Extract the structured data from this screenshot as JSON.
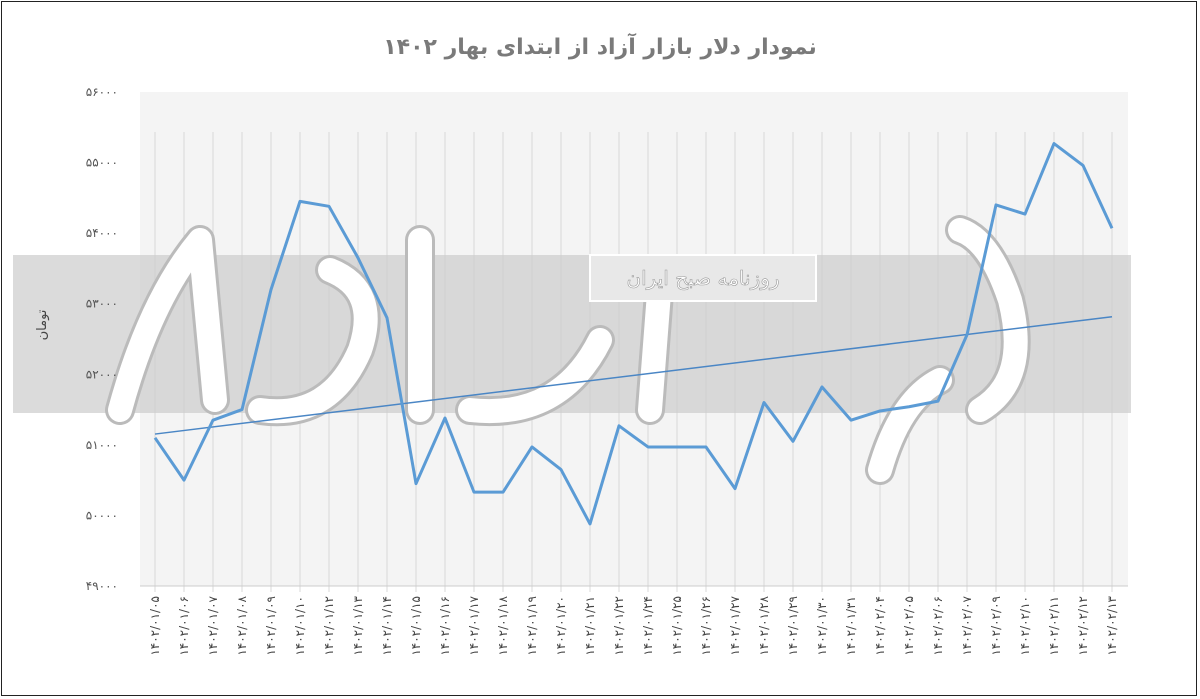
{
  "chart_data": {
    "type": "line",
    "title": "نمودار دلار بازار آزاد از ابتدای بهار ۱۴۰۲",
    "ylabel": "تومان",
    "xlabel": "",
    "ylim": [
      49000,
      56000
    ],
    "yticks": [
      49000,
      50000,
      51000,
      52000,
      53000,
      54000,
      55000,
      56000
    ],
    "ytick_labels": [
      "۴۹۰۰۰",
      "۵۰۰۰۰",
      "۵۱۰۰۰",
      "۵۲۰۰۰",
      "۵۳۰۰۰",
      "۵۴۰۰۰",
      "۵۵۰۰۰",
      "۵۶۰۰۰"
    ],
    "categories": [
      "۱۴۰۲/۰۱/۰۵",
      "۱۴۰۲/۰۱/۰۶",
      "۱۴۰۲/۰۱/۰۷",
      "۱۴۰۲/۰۱/۰۸",
      "۱۴۰۲/۰۱/۰۹",
      "۱۴۰۲/۰۱/۱۰",
      "۱۴۰۲/۰۱/۱۲",
      "۱۴۰۲/۰۱/۱۳",
      "۱۴۰۲/۰۱/۱۴",
      "۱۴۰۲/۰۱/۱۵",
      "۱۴۰۲/۰۱/۱۶",
      "۱۴۰۲/۰۱/۱۷",
      "۱۴۰۲/۰۱/۱۸",
      "۱۴۰۲/۰۱/۱۹",
      "۱۴۰۲/۰۱/۲۰",
      "۱۴۰۲/۰۱/۲۱",
      "۱۴۰۲/۰۱/۲۲",
      "۱۴۰۲/۰۱/۲۴",
      "۱۴۰۲/۰۱/۲۵",
      "۱۴۰۲/۰۱/۲۶",
      "۱۴۰۲/۰۱/۲۷",
      "۱۴۰۲/۰۱/۲۸",
      "۱۴۰۲/۰۱/۲۹",
      "۱۴۰۲/۰۱/۳۰",
      "۱۴۰۲/۰۱/۳۱",
      "۱۴۰۲/۰۲/۰۴",
      "۱۴۰۲/۰۲/۰۵",
      "۱۴۰۲/۰۲/۰۶",
      "۱۴۰۲/۰۲/۰۷",
      "۱۴۰۲/۰۲/۰۹",
      "۱۴۰۲/۰۲/۱۰",
      "۱۴۰۲/۰۲/۱۱",
      "۱۴۰۲/۰۲/۱۲",
      "۱۴۰۲/۰۲/۱۳"
    ],
    "series": [
      {
        "values": [
          51100,
          50500,
          51350,
          51500,
          53200,
          54450,
          54380,
          53650,
          52800,
          50450,
          51380,
          50330,
          50330,
          50970,
          50650,
          49880,
          51270,
          50970,
          50970,
          50970,
          50380,
          51600,
          51050,
          51820,
          51350,
          51480,
          51540,
          51620,
          52560,
          54400,
          54270,
          55270,
          54960,
          54070
        ],
        "color": "#5b9bd5"
      }
    ],
    "trendline": {
      "type": "linear",
      "color": "#4a86c5"
    },
    "grid": {
      "vertical": true,
      "horizontal": false
    },
    "legend": "none"
  },
  "watermark": {
    "logo_text": "دنیای اقتصاد",
    "band_text": "روزنامه صبح ایران"
  }
}
